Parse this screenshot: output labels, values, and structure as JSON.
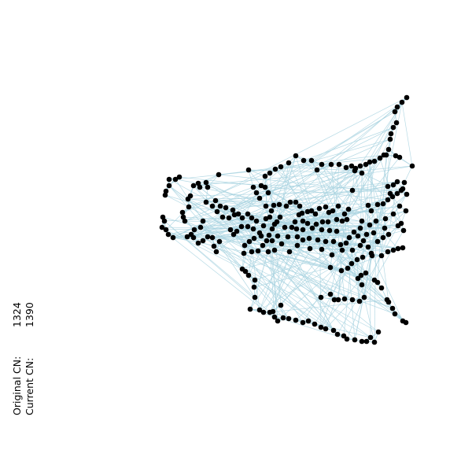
{
  "cn_readout": {
    "original_label": "Original CN:",
    "original_value": "1324",
    "current_label": "Current  CN:",
    "current_value": "1390"
  },
  "colors": {
    "edge": "#a9d4e0",
    "node": "#000000",
    "background": "#ffffff"
  }
}
